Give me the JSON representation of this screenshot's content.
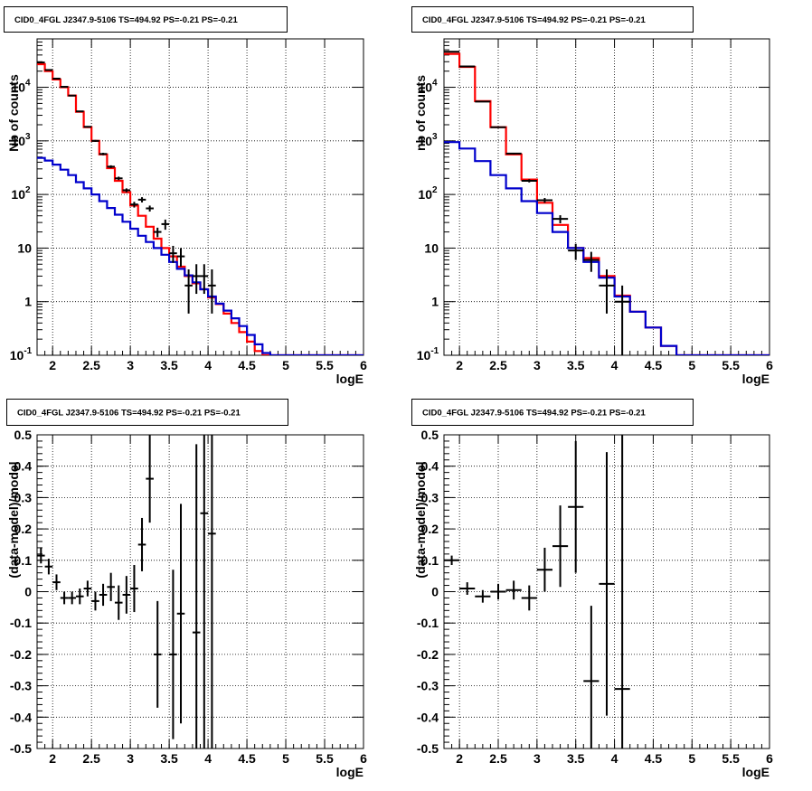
{
  "colors": {
    "data": "#000000",
    "total_model": "#ff0000",
    "source_model": "#0000cc",
    "grid": "#000000"
  },
  "chart_data": [
    {
      "type": "line",
      "title": "CID0_4FGL J2347.9-5106 TS=494.92 PS=-0.21 PS=-0.21",
      "xlabel": "logE",
      "ylabel": "Nb of counts",
      "xlim": [
        1.8,
        6.0
      ],
      "ylim": [
        0.1,
        80000
      ],
      "yscale": "log",
      "grid": true,
      "x_ticks": [
        "2",
        "2.5",
        "3",
        "3.5",
        "4",
        "4.5",
        "5",
        "5.5",
        "6"
      ],
      "y_ticks": [
        "10^{-1}",
        "1",
        "10",
        "10^{2}",
        "10^{3}",
        "10^{4}"
      ],
      "bin_edges": [
        1.8,
        1.9,
        2.0,
        2.1,
        2.2,
        2.3,
        2.4,
        2.5,
        2.6,
        2.7,
        2.8,
        2.9,
        3.0,
        3.1,
        3.2,
        3.3,
        3.4,
        3.5,
        3.6,
        3.7,
        3.8,
        3.9,
        4.0,
        4.1,
        4.2,
        4.3,
        4.4,
        4.5,
        4.6,
        4.7,
        4.8,
        4.9,
        5.0,
        5.1,
        5.2,
        5.3,
        5.4,
        5.5,
        5.6,
        5.7,
        5.8,
        5.9,
        6.0
      ],
      "series": [
        {
          "role": "total_model",
          "values": [
            27000,
            20000,
            14000,
            10000,
            7000,
            3500,
            1800,
            1000,
            560,
            310,
            180,
            110,
            62,
            40,
            25,
            15,
            10,
            7,
            4.5,
            3,
            2.2,
            1.7,
            1.2,
            0.9,
            0.6,
            0.4,
            0.27,
            0.18,
            0.12,
            0.1,
            0.1,
            0.1,
            0.1,
            0.1,
            0.1,
            0.1,
            0.1,
            0.1,
            0.1,
            0.1,
            0.1,
            0.1
          ]
        },
        {
          "role": "source_model",
          "values": [
            480,
            430,
            360,
            290,
            230,
            170,
            130,
            100,
            75,
            56,
            42,
            31,
            23,
            17,
            13,
            10,
            7.5,
            5.5,
            4.1,
            3.1,
            2.3,
            1.7,
            1.25,
            0.92,
            0.68,
            0.49,
            0.35,
            0.24,
            0.16,
            0.11,
            0.1,
            0.1,
            0.1,
            0.1,
            0.1,
            0.1,
            0.1,
            0.1,
            0.1,
            0.1,
            0.1,
            0.1
          ]
        },
        {
          "role": "data",
          "x": [
            1.85,
            1.95,
            2.05,
            2.15,
            2.25,
            2.35,
            2.45,
            2.55,
            2.65,
            2.75,
            2.85,
            2.95,
            3.05,
            3.15,
            3.25,
            3.35,
            3.45,
            3.55,
            3.65,
            3.75,
            3.85,
            3.95,
            4.05
          ],
          "y": [
            29000,
            21000,
            14500,
            10200,
            7000,
            3550,
            1830,
            1000,
            570,
            330,
            200,
            120,
            65,
            80,
            55,
            20,
            28,
            8,
            7,
            2,
            3,
            3,
            2
          ],
          "ylow": [
            28000,
            20500,
            14200,
            10000,
            6850,
            3450,
            1770,
            960,
            540,
            310,
            185,
            110,
            57,
            71,
            48,
            16,
            22,
            5.3,
            4.5,
            0.6,
            1.4,
            1.4,
            0.6
          ],
          "yhigh": [
            30000,
            21500,
            14800,
            10400,
            7150,
            3650,
            1890,
            1040,
            600,
            350,
            215,
            130,
            73,
            89,
            62,
            24,
            34,
            11,
            10,
            4,
            5,
            5,
            4
          ]
        }
      ]
    },
    {
      "type": "line",
      "title": "CID0_4FGL J2347.9-5106 TS=494.92 PS=-0.21 PS=-0.21",
      "xlabel": "logE",
      "ylabel": "nb of counts",
      "xlim": [
        1.8,
        6.0
      ],
      "ylim": [
        0.1,
        80000
      ],
      "yscale": "log",
      "grid": true,
      "x_ticks": [
        "2",
        "2.5",
        "3",
        "3.5",
        "4",
        "4.5",
        "5",
        "5.5",
        "6"
      ],
      "y_ticks": [
        "10^{-1}",
        "1",
        "10",
        "10^{2}",
        "10^{3}",
        "10^{4}"
      ],
      "bin_edges": [
        1.8,
        2.0,
        2.2,
        2.4,
        2.6,
        2.8,
        3.0,
        3.2,
        3.4,
        3.6,
        3.8,
        4.0,
        4.2,
        4.4,
        4.6,
        4.8,
        5.0,
        5.2,
        5.4,
        5.6,
        5.8,
        6.0
      ],
      "series": [
        {
          "role": "total_model",
          "values": [
            42000,
            24000,
            5500,
            1800,
            560,
            190,
            70,
            27,
            10,
            6.5,
            3,
            1.3,
            0.65,
            0.33,
            0.15,
            0.1,
            0.1,
            0.1,
            0.1,
            0.1,
            0.1
          ]
        },
        {
          "role": "source_model",
          "values": [
            950,
            720,
            420,
            230,
            130,
            75,
            45,
            20,
            10,
            5.5,
            2.8,
            1.25,
            0.65,
            0.33,
            0.15,
            0.1,
            0.1,
            0.1,
            0.1,
            0.1,
            0.1
          ]
        },
        {
          "role": "data",
          "x": [
            1.9,
            2.1,
            2.3,
            2.5,
            2.7,
            2.9,
            3.1,
            3.3,
            3.5,
            3.7,
            3.9,
            4.1
          ],
          "y": [
            46000,
            24500,
            5400,
            1800,
            580,
            180,
            78,
            35,
            9,
            6,
            2,
            1
          ],
          "ylow": [
            45500,
            24300,
            5300,
            1760,
            560,
            168,
            70,
            29,
            6,
            3.6,
            0.6,
            0.1
          ],
          "yhigh": [
            46500,
            24700,
            5500,
            1840,
            600,
            192,
            86,
            41,
            12,
            8.5,
            4,
            2
          ]
        }
      ]
    },
    {
      "type": "scatter",
      "title": "CID0_4FGL J2347.9-5106 TS=494.92 PS=-0.21 PS=-0.21",
      "xlabel": "logE",
      "ylabel": "(data-model)/model",
      "xlim": [
        1.8,
        6.0
      ],
      "ylim": [
        -0.5,
        0.5
      ],
      "grid": true,
      "x_ticks": [
        "2",
        "2.5",
        "3",
        "3.5",
        "4",
        "4.5",
        "5",
        "5.5",
        "6"
      ],
      "y_ticks": [
        "-0.5",
        "-0.4",
        "-0.3",
        "-0.2",
        "-0.1",
        "0",
        "0.1",
        "0.2",
        "0.3",
        "0.4",
        "0.5"
      ],
      "series": [
        {
          "role": "data",
          "x": [
            1.85,
            1.95,
            2.05,
            2.15,
            2.25,
            2.35,
            2.45,
            2.55,
            2.65,
            2.75,
            2.85,
            2.95,
            3.05,
            3.15,
            3.25,
            3.35,
            3.45,
            3.55,
            3.65,
            3.75,
            3.85,
            3.95,
            4.05
          ],
          "y": [
            0.115,
            0.08,
            0.03,
            -0.02,
            -0.02,
            -0.015,
            0.01,
            -0.03,
            -0.01,
            0.015,
            -0.035,
            -0.01,
            0.01,
            0.15,
            0.36,
            -0.2,
            null,
            -0.2,
            -0.07,
            null,
            -0.13,
            0.25,
            0.185
          ],
          "err": [
            0.025,
            0.025,
            0.025,
            0.02,
            0.02,
            0.025,
            0.025,
            0.03,
            0.035,
            0.045,
            0.055,
            0.06,
            0.075,
            0.085,
            0.14,
            0.17,
            null,
            0.27,
            0.35,
            null,
            0.6,
            0.8,
            0.8
          ]
        }
      ]
    },
    {
      "type": "scatter",
      "title": "CID0_4FGL J2347.9-5106 TS=494.92 PS=-0.21 PS=-0.21",
      "xlabel": "logE",
      "ylabel": "(data-model)/model",
      "xlim": [
        1.8,
        6.0
      ],
      "ylim": [
        -0.5,
        0.5
      ],
      "grid": true,
      "x_ticks": [
        "2",
        "2.5",
        "3",
        "3.5",
        "4",
        "4.5",
        "5",
        "5.5",
        "6"
      ],
      "y_ticks": [
        "-0.5",
        "-0.4",
        "-0.3",
        "-0.2",
        "-0.1",
        "0",
        "0.1",
        "0.2",
        "0.3",
        "0.4",
        "0.5"
      ],
      "series": [
        {
          "role": "data",
          "x": [
            1.9,
            2.1,
            2.3,
            2.5,
            2.7,
            2.9,
            3.1,
            3.3,
            3.5,
            3.7,
            3.9,
            4.1
          ],
          "y": [
            0.1,
            0.01,
            -0.015,
            0.0,
            0.005,
            -0.02,
            0.07,
            0.145,
            0.27,
            -0.285,
            0.025,
            -0.31
          ],
          "err": [
            0.015,
            0.02,
            0.02,
            0.025,
            0.03,
            0.04,
            0.07,
            0.13,
            0.21,
            0.24,
            0.42,
            0.9
          ]
        }
      ]
    }
  ]
}
